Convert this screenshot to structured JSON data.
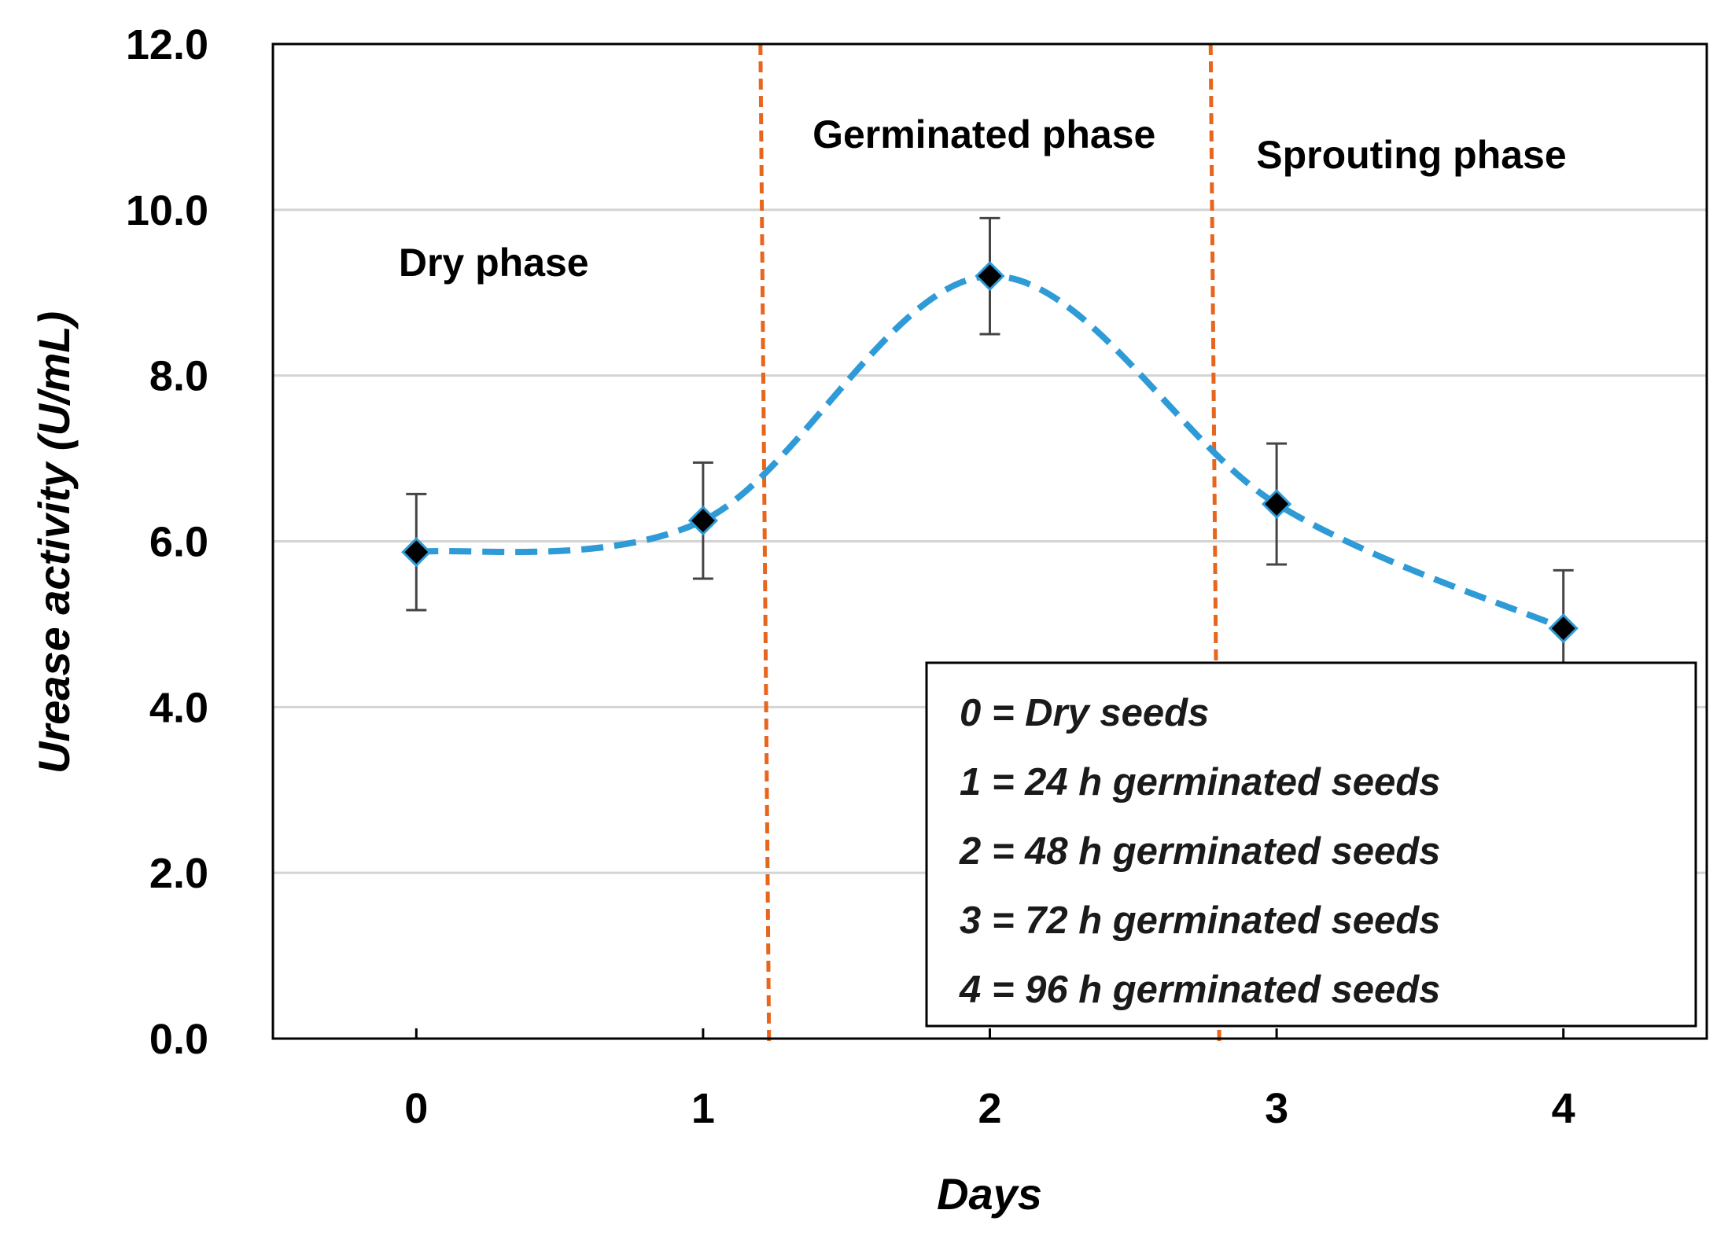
{
  "chart_data": {
    "type": "line",
    "title": "",
    "xlabel": "Days",
    "ylabel_main": "Urease activity ",
    "ylabel_unit": "(U/mL)",
    "x": [
      0,
      1,
      2,
      3,
      4
    ],
    "x_tick_labels": [
      "0",
      "1",
      "2",
      "3",
      "4"
    ],
    "xlim": [
      -0.5,
      4.5
    ],
    "ylim": [
      0,
      12
    ],
    "y_ticks": [
      0,
      2,
      4,
      6,
      8,
      10,
      12
    ],
    "y_tick_labels": [
      "0.0",
      "2.0",
      "4.0",
      "6.0",
      "8.0",
      "10.0",
      "12.0"
    ],
    "grid": "horizontal",
    "series": [
      {
        "name": "Urease activity",
        "values": [
          5.87,
          6.25,
          9.2,
          6.45,
          4.95
        ],
        "errors": [
          0.7,
          0.7,
          0.7,
          0.73,
          0.7
        ],
        "line_color": "#2e9bd6",
        "line_style": "dashed smooth",
        "marker": "diamond",
        "marker_color": "#000000"
      }
    ],
    "phase_boundaries": [
      {
        "top_x": 1.2,
        "bottom_x": 1.23,
        "color": "#e8651e"
      },
      {
        "top_x": 2.77,
        "bottom_x": 2.8,
        "color": "#e8651e"
      }
    ],
    "phases": [
      {
        "label": "Dry phase",
        "x": 0.27,
        "y": 9.2
      },
      {
        "label": "Germinated phase",
        "x": 1.98,
        "y": 10.75
      },
      {
        "label": "Sprouting phase",
        "x": 3.47,
        "y": 10.5
      }
    ],
    "legend": {
      "placement": "bottom-right",
      "entries": [
        "0 = Dry seeds",
        "1 = 24 h germinated seeds",
        "2 = 48 h germinated seeds",
        "3 = 72 h germinated seeds",
        "4 = 96 h germinated seeds"
      ]
    }
  }
}
